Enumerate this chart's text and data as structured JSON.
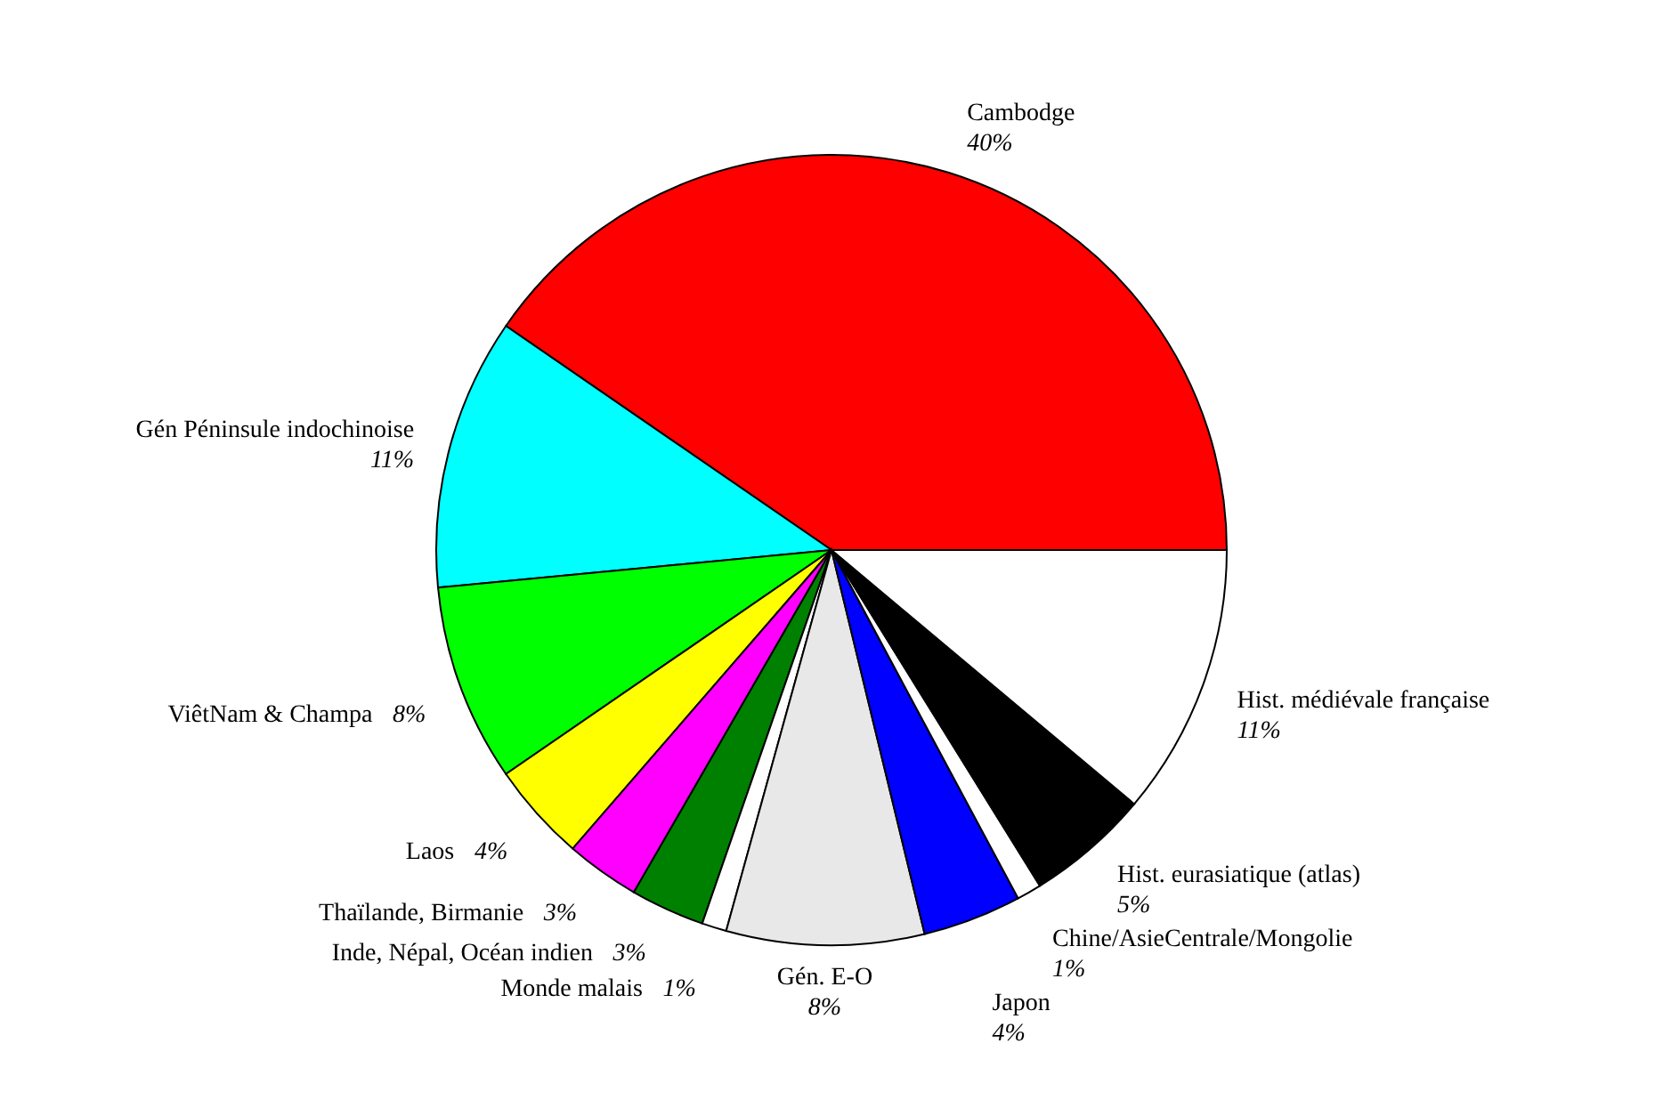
{
  "chart_data": {
    "type": "pie",
    "categories": [
      "Cambodge",
      "Gén Péninsule indochinoise",
      "ViêtNam & Champa",
      "Laos",
      "Thaïlande, Birmanie",
      "Inde, Népal, Océan indien",
      "Monde malais",
      "Gén. E-O",
      "Japon",
      "Chine/AsieCentrale/Mongolie",
      "Hist. eurasiatique (atlas)",
      "Hist. médiévale française"
    ],
    "values": [
      40,
      11,
      8,
      4,
      3,
      3,
      1,
      8,
      4,
      1,
      5,
      11
    ],
    "colors": [
      "#ff0000",
      "#00ffff",
      "#00ff00",
      "#ffff00",
      "#ff00ff",
      "#008000",
      "#ffffff",
      "#e8e8e8",
      "#0000ff",
      "#ffffff",
      "#000000",
      "#ffffff"
    ],
    "value_labels": [
      "40%",
      "11%",
      "8%",
      "4%",
      "3%",
      "3%",
      "1%",
      "8%",
      "4%",
      "1%",
      "5%",
      "11%"
    ],
    "legend": false
  }
}
